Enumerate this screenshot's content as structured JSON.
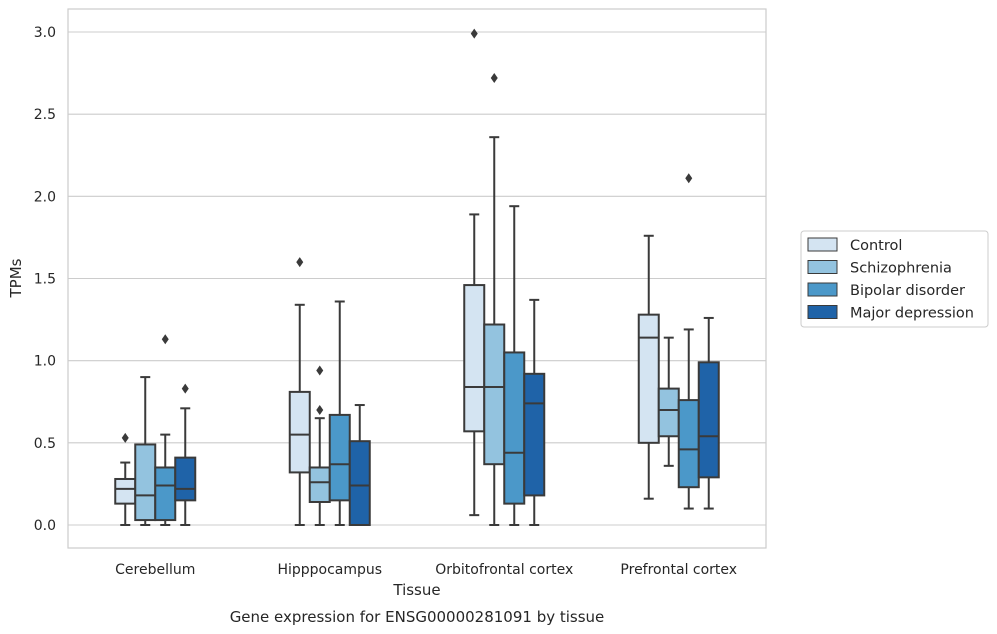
{
  "chart_data": {
    "type": "box",
    "xlabel": "Tissue",
    "ylabel": "TPMs",
    "caption": "Gene expression for ENSG00000281091 by tissue",
    "categories": [
      "Cerebellum",
      "Hipppocampus",
      "Orbitofrontal cortex",
      "Prefrontal cortex"
    ],
    "ylim": [
      -0.14,
      3.14
    ],
    "yticks": [
      0.0,
      0.5,
      1.0,
      1.5,
      2.0,
      2.5,
      3.0
    ],
    "ytick_labels": [
      "0.0",
      "0.5",
      "1.0",
      "1.5",
      "2.0",
      "2.5",
      "3.0"
    ],
    "grid": "horizontal",
    "legend_position": "right",
    "series": [
      {
        "name": "Control",
        "color": "#d4e4f2",
        "boxes": [
          {
            "whisker_low": 0.0,
            "q1": 0.13,
            "median": 0.22,
            "q3": 0.28,
            "whisker_high": 0.38,
            "outliers": [
              0.53
            ]
          },
          {
            "whisker_low": 0.0,
            "q1": 0.32,
            "median": 0.55,
            "q3": 0.81,
            "whisker_high": 1.34,
            "outliers": [
              1.6
            ]
          },
          {
            "whisker_low": 0.06,
            "q1": 0.57,
            "median": 0.84,
            "q3": 1.46,
            "whisker_high": 1.89,
            "outliers": [
              2.99
            ]
          },
          {
            "whisker_low": 0.16,
            "q1": 0.5,
            "median": 1.14,
            "q3": 1.28,
            "whisker_high": 1.76,
            "outliers": []
          }
        ]
      },
      {
        "name": "Schizophrenia",
        "color": "#93c3df",
        "boxes": [
          {
            "whisker_low": 0.0,
            "q1": 0.03,
            "median": 0.18,
            "q3": 0.49,
            "whisker_high": 0.9,
            "outliers": []
          },
          {
            "whisker_low": 0.0,
            "q1": 0.14,
            "median": 0.26,
            "q3": 0.35,
            "whisker_high": 0.65,
            "outliers": [
              0.7,
              0.94
            ]
          },
          {
            "whisker_low": 0.0,
            "q1": 0.37,
            "median": 0.84,
            "q3": 1.22,
            "whisker_high": 2.36,
            "outliers": [
              2.72
            ]
          },
          {
            "whisker_low": 0.36,
            "q1": 0.54,
            "median": 0.7,
            "q3": 0.83,
            "whisker_high": 1.14,
            "outliers": []
          }
        ]
      },
      {
        "name": "Bipolar disorder",
        "color": "#4b98c9",
        "boxes": [
          {
            "whisker_low": 0.0,
            "q1": 0.03,
            "median": 0.24,
            "q3": 0.35,
            "whisker_high": 0.55,
            "outliers": [
              1.13
            ]
          },
          {
            "whisker_low": 0.0,
            "q1": 0.15,
            "median": 0.37,
            "q3": 0.67,
            "whisker_high": 1.36,
            "outliers": []
          },
          {
            "whisker_low": 0.0,
            "q1": 0.13,
            "median": 0.44,
            "q3": 1.05,
            "whisker_high": 1.94,
            "outliers": []
          },
          {
            "whisker_low": 0.1,
            "q1": 0.23,
            "median": 0.46,
            "q3": 0.76,
            "whisker_high": 1.19,
            "outliers": [
              2.11
            ]
          }
        ]
      },
      {
        "name": "Major depression",
        "color": "#1f63a8",
        "boxes": [
          {
            "whisker_low": 0.0,
            "q1": 0.15,
            "median": 0.22,
            "q3": 0.41,
            "whisker_high": 0.71,
            "outliers": [
              0.83
            ]
          },
          {
            "whisker_low": 0.0,
            "q1": 0.0,
            "median": 0.24,
            "q3": 0.51,
            "whisker_high": 0.73,
            "outliers": []
          },
          {
            "whisker_low": 0.0,
            "q1": 0.18,
            "median": 0.74,
            "q3": 0.92,
            "whisker_high": 1.37,
            "outliers": []
          },
          {
            "whisker_low": 0.1,
            "q1": 0.29,
            "median": 0.54,
            "q3": 0.99,
            "whisker_high": 1.26,
            "outliers": []
          }
        ]
      }
    ]
  },
  "colors": {
    "grid": "#cccccc",
    "axes_frame": "#cccccc",
    "box_edge": "#3a3a3a",
    "text": "#262626"
  }
}
